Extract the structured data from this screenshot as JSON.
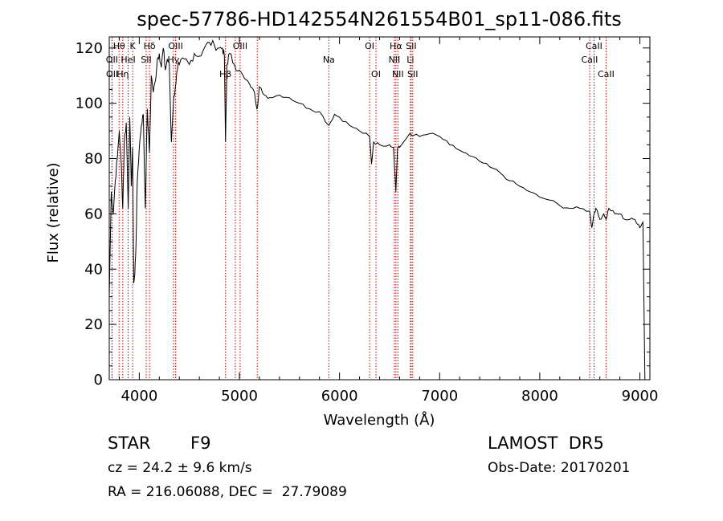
{
  "chart_data": {
    "type": "line",
    "title": "spec-57786-HD142554N261554B01_sp11-086.fits",
    "xlabel": "Wavelength (Å)",
    "ylabel": "Flux (relative)",
    "xlim": [
      3700,
      9100
    ],
    "ylim": [
      0,
      124
    ],
    "xticks": [
      4000,
      5000,
      6000,
      7000,
      8000,
      9000
    ],
    "yticks": [
      0,
      20,
      40,
      60,
      80,
      100,
      120
    ],
    "grid": false,
    "series": [
      {
        "x": [
          3700,
          3720,
          3740,
          3760,
          3780,
          3800,
          3820,
          3835,
          3850,
          3870,
          3889,
          3905,
          3920,
          3933,
          3945,
          3955,
          3968,
          3980,
          4000,
          4020,
          4040,
          4060,
          4080,
          4101,
          4120,
          4140,
          4160,
          4180,
          4200,
          4220,
          4240,
          4260,
          4280,
          4300,
          4320,
          4340,
          4360,
          4380,
          4400,
          4450,
          4500,
          4550,
          4600,
          4650,
          4700,
          4750,
          4800,
          4830,
          4850,
          4861,
          4875,
          4900,
          4950,
          5000,
          5050,
          5100,
          5150,
          5175,
          5185,
          5200,
          5250,
          5300,
          5400,
          5500,
          5600,
          5700,
          5800,
          5893,
          5950,
          6000,
          6100,
          6200,
          6300,
          6320,
          6340,
          6400,
          6500,
          6540,
          6563,
          6580,
          6600,
          6700,
          6800,
          6900,
          7000,
          7100,
          7200,
          7300,
          7400,
          7500,
          7600,
          7700,
          7800,
          7900,
          8000,
          8100,
          8200,
          8300,
          8400,
          8498,
          8520,
          8542,
          8560,
          8600,
          8640,
          8662,
          8690,
          8750,
          8800,
          8850,
          8900,
          8950,
          8990,
          9000,
          9030,
          9050,
          9060
        ],
        "y": [
          30,
          68,
          60,
          72,
          80,
          90,
          78,
          62,
          86,
          93,
          62,
          95,
          70,
          84,
          35,
          38,
          50,
          72,
          84,
          92,
          96,
          62,
          98,
          82,
          110,
          104,
          108,
          116,
          118,
          113,
          120,
          112,
          116,
          114,
          86,
          100,
          106,
          112,
          114,
          116,
          114,
          118,
          117,
          120,
          122,
          121,
          120,
          120,
          117,
          86,
          114,
          118,
          114,
          112,
          109,
          107,
          104,
          98,
          100,
          106,
          103,
          102,
          103,
          102,
          100,
          98,
          97,
          92,
          96,
          95,
          92,
          90,
          88,
          78,
          86,
          85,
          85,
          84,
          68,
          84,
          84,
          89,
          88,
          89,
          88,
          85,
          83,
          81,
          79,
          77,
          75,
          72,
          70,
          68,
          66,
          65,
          63,
          62,
          62,
          61,
          55,
          60,
          62,
          58,
          60,
          58,
          62,
          60,
          60,
          58,
          58,
          58,
          56,
          55,
          57,
          0,
          0
        ]
      }
    ],
    "lines": [
      {
        "label": "Hθ",
        "x": 3798,
        "row": 1
      },
      {
        "label": "OII",
        "x": 3727,
        "row": 2
      },
      {
        "label": "OII",
        "x": 3729,
        "row": 3
      },
      {
        "label": "Hη",
        "x": 3835,
        "row": 3
      },
      {
        "label": "HeI",
        "x": 3889,
        "row": 2
      },
      {
        "label": "K",
        "x": 3934,
        "row": 1
      },
      {
        "label": "SII",
        "x": 4069,
        "row": 2
      },
      {
        "label": "Hδ",
        "x": 4102,
        "row": 1
      },
      {
        "label": "OIII",
        "x": 4363,
        "row": 1
      },
      {
        "label": "Hγ",
        "x": 4341,
        "row": 2
      },
      {
        "label": "Hβ",
        "x": 4861,
        "row": 3
      },
      {
        "label": "OIII",
        "x": 5007,
        "row": 1
      },
      {
        "label": "",
        "x": 4959,
        "row": 0
      },
      {
        "label": "",
        "x": 5178,
        "row": 0
      },
      {
        "label": "Na",
        "x": 5893,
        "row": 2
      },
      {
        "label": "OI",
        "x": 6300,
        "row": 1
      },
      {
        "label": "OI",
        "x": 6364,
        "row": 3
      },
      {
        "label": "Hα",
        "x": 6563,
        "row": 1
      },
      {
        "label": "NII",
        "x": 6548,
        "row": 2
      },
      {
        "label": "NII",
        "x": 6583,
        "row": 3
      },
      {
        "label": "SII",
        "x": 6716,
        "row": 1
      },
      {
        "label": "Li",
        "x": 6708,
        "row": 2
      },
      {
        "label": "SII",
        "x": 6731,
        "row": 3
      },
      {
        "label": "CaII",
        "x": 8542,
        "row": 1
      },
      {
        "label": "CaII",
        "x": 8498,
        "row": 2
      },
      {
        "label": "CaII",
        "x": 8662,
        "row": 3
      }
    ]
  },
  "info": {
    "object_class": "STAR",
    "subclass": "F9",
    "survey": "LAMOST  DR5",
    "cz": "cz = 24.2 ± 9.6 km/s",
    "obs_date": "Obs-Date: 20170201",
    "coords": "RA = 216.06088, DEC =  27.79089"
  },
  "colors": {
    "spectrum": "#000000",
    "line_markers": "#cc0000",
    "axes": "#000000"
  }
}
